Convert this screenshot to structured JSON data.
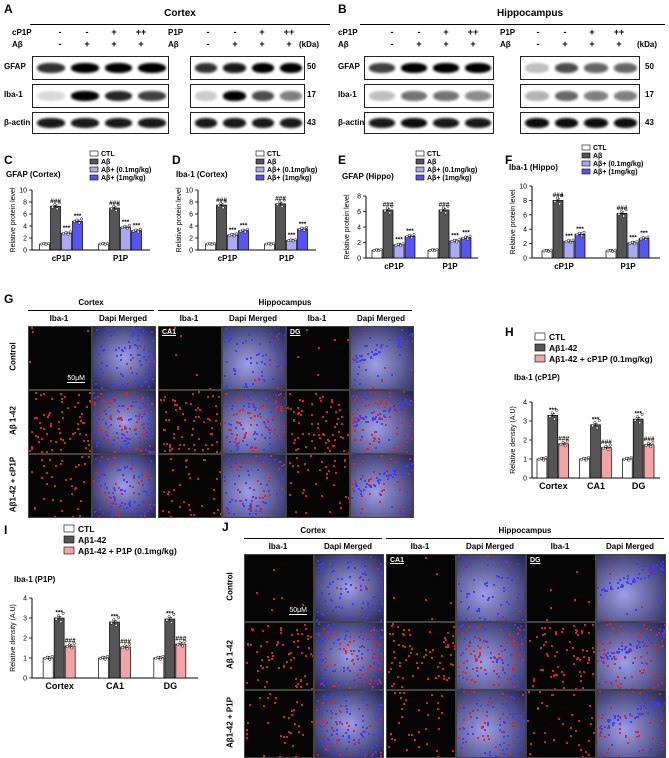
{
  "panels": {
    "A": {
      "label": "A",
      "title": "Cortex"
    },
    "B": {
      "label": "B",
      "title": "Hippocampus"
    }
  },
  "blot_rows": {
    "treat1_cp1p": "cP1P",
    "treat1_p1p": "P1P",
    "treat2": "Aβ",
    "signs_top": [
      "-",
      "-",
      "+",
      "++"
    ],
    "signs_bottom": [
      "-",
      "+",
      "+",
      "+"
    ],
    "kda": "(kDa)",
    "proteins": [
      "GFAP",
      "Iba-1",
      "β-actin"
    ],
    "weights": [
      "50",
      "17",
      "43"
    ]
  },
  "colors": {
    "ctl": "#ffffff",
    "ab": "#555555",
    "low": "#a9a9f5",
    "high": "#5555f0",
    "cp1p_low": "#f3a3a3"
  },
  "chart_data": [
    {
      "id": "C",
      "type": "bar",
      "title": "GFAP (Cortex)",
      "ylabel": "Relative protein level",
      "ylim": [
        0,
        10
      ],
      "yticks": [
        0,
        2,
        4,
        6,
        8,
        10
      ],
      "categories": [
        "cP1P",
        "P1P"
      ],
      "legend": [
        "CTL",
        "Aβ",
        "Aβ+ (0.1mg/kg)",
        "Aβ+ (1mg/kg)"
      ],
      "values": [
        [
          1,
          7.3,
          2.8,
          4.8
        ],
        [
          1,
          7,
          3.8,
          3.2
        ]
      ],
      "annotations": [
        [
          "",
          "###",
          "***",
          "***"
        ],
        [
          "",
          "###",
          "***",
          "***"
        ]
      ]
    },
    {
      "id": "D",
      "type": "bar",
      "title": "Iba-1 (Cortex)",
      "ylabel": "Relative protein level",
      "ylim": [
        0,
        10
      ],
      "yticks": [
        0,
        2,
        4,
        6,
        8,
        10
      ],
      "categories": [
        "cP1P",
        "P1P"
      ],
      "legend": [
        "CTL",
        "Aβ",
        "Aβ+ (0.1mg/kg)",
        "Aβ+ (1mg/kg)"
      ],
      "values": [
        [
          1,
          7.5,
          2.5,
          3.2
        ],
        [
          1,
          7.7,
          1.6,
          3.5
        ]
      ],
      "annotations": [
        [
          "",
          "###",
          "***",
          "***"
        ],
        [
          "",
          "###",
          "***",
          "***"
        ]
      ]
    },
    {
      "id": "E",
      "type": "bar",
      "title": "GFAP (Hippo)",
      "ylabel": "Relative protein level",
      "ylim": [
        0,
        8
      ],
      "yticks": [
        0,
        2,
        4,
        6,
        8
      ],
      "categories": [
        "cP1P",
        "P1P"
      ],
      "legend": [
        "CTL",
        "Aβ",
        "Aβ+ (0.1mg/kg)",
        "Aβ+ (1mg/kg)"
      ],
      "values": [
        [
          1,
          6.2,
          1.7,
          2.8
        ],
        [
          1,
          6.2,
          2.2,
          2.6
        ]
      ],
      "annotations": [
        [
          "",
          "###",
          "***",
          "***"
        ],
        [
          "",
          "###",
          "***",
          "***"
        ]
      ]
    },
    {
      "id": "F",
      "type": "bar",
      "title": "Iba-1 (Hippo)",
      "ylabel": "Relative protein level",
      "ylim": [
        0,
        10
      ],
      "yticks": [
        0,
        2,
        4,
        6,
        8,
        10
      ],
      "categories": [
        "cP1P",
        "P1P"
      ],
      "legend": [
        "CTL",
        "Aβ",
        "Aβ+ (0.1mg/kg)",
        "Aβ+ (1mg/kg)"
      ],
      "values": [
        [
          1,
          8,
          2.3,
          3.3
        ],
        [
          1,
          6.2,
          2.1,
          2.7
        ]
      ],
      "annotations": [
        [
          "",
          "###",
          "***",
          "***"
        ],
        [
          "",
          "###",
          "***",
          "***"
        ]
      ]
    },
    {
      "id": "H",
      "type": "bar",
      "title": "Iba-1 (cP1P)",
      "ylabel": "Relative density (A.U)",
      "ylim": [
        0,
        4
      ],
      "yticks": [
        0,
        1,
        2,
        3,
        4
      ],
      "categories": [
        "Cortex",
        "CA1",
        "DG"
      ],
      "legend": [
        "CTL",
        "Aβ1-42",
        "Aβ1-42 + cP1P (0.1mg/kg)"
      ],
      "values": [
        [
          1,
          3.3,
          1.8
        ],
        [
          1,
          2.8,
          1.6
        ],
        [
          1,
          3.1,
          1.75
        ]
      ],
      "annotations": [
        [
          "",
          "***",
          "###"
        ],
        [
          "",
          "***",
          "###"
        ],
        [
          "",
          "***",
          "###"
        ]
      ]
    },
    {
      "id": "I",
      "type": "bar",
      "title": "Iba-1 (P1P)",
      "ylabel": "Relative density (A.U)",
      "ylim": [
        0,
        4
      ],
      "yticks": [
        0,
        1,
        2,
        3,
        4
      ],
      "categories": [
        "Cortex",
        "CA1",
        "DG"
      ],
      "legend": [
        "CTL",
        "Aβ1-42",
        "Aβ1-42 + P1P (0.1mg/kg)"
      ],
      "values": [
        [
          1,
          3,
          1.6
        ],
        [
          1,
          2.8,
          1.55
        ],
        [
          1,
          2.95,
          1.7
        ]
      ],
      "annotations": [
        [
          "",
          "***",
          "###"
        ],
        [
          "",
          "***",
          "###"
        ],
        [
          "",
          "***",
          "###"
        ]
      ]
    }
  ],
  "microscopy": {
    "G": {
      "label": "G",
      "sections": [
        "Cortex",
        "Hippocampus"
      ],
      "cols": [
        "Iba-1",
        "Dapi Merged",
        "Iba-1",
        "Dapi Merged",
        "Iba-1",
        "Dapi Merged"
      ],
      "rows": [
        "Control",
        "Aβ 1-42",
        "Aβ1-42 + cP1P"
      ],
      "regions": [
        "CA1",
        "DG"
      ],
      "scale": "50μM"
    },
    "J": {
      "label": "J",
      "sections": [
        "Cortex",
        "Hippocampus"
      ],
      "cols": [
        "Iba-1",
        "Dapi Merged",
        "Iba-1",
        "Dapi Merged",
        "Iba-1",
        "Dapi Merged"
      ],
      "rows": [
        "Control",
        "Aβ 1-42",
        "Aβ1-42 + P1P"
      ],
      "regions": [
        "CA1",
        "DG"
      ],
      "scale": "50μM"
    }
  }
}
